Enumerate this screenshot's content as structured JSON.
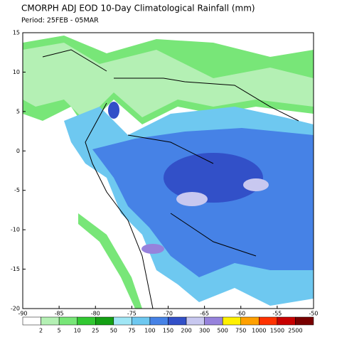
{
  "map": {
    "title": "CMORPH ADJ EOD 10-Day Climatological Rainfall (mm)",
    "subtitle": "Period: 25FEB - 05MAR",
    "lon_range": [
      -90,
      -50
    ],
    "lat_range": [
      -20,
      15
    ],
    "lon_ticks": [
      -90,
      -85,
      -80,
      -75,
      -70,
      -65,
      -60,
      -55,
      -50
    ],
    "lat_ticks": [
      15,
      10,
      5,
      0,
      -5,
      -10,
      -15,
      -20
    ],
    "legend": {
      "labels": [
        2,
        5,
        10,
        25,
        50,
        75,
        100,
        150,
        200,
        300,
        500,
        750,
        1000,
        1500,
        2500
      ],
      "colors": [
        "#ffffff",
        "#b4f0b4",
        "#78e678",
        "#32c832",
        "#14a014",
        "#a0e6f5",
        "#6ec8f0",
        "#4682e6",
        "#3250c8",
        "#c8c8f0",
        "#9682dc",
        "#fff000",
        "#ffa000",
        "#ff3200",
        "#c80000",
        "#780000"
      ]
    }
  }
}
